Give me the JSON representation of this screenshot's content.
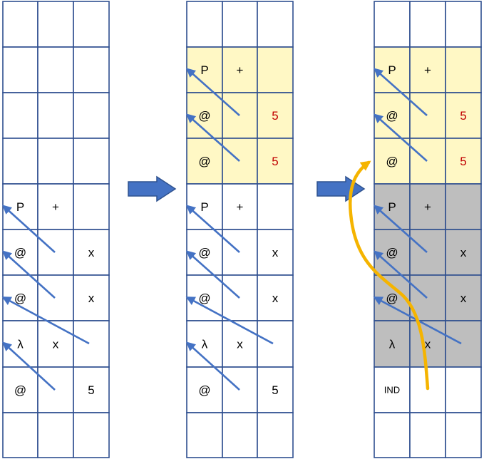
{
  "colors": {
    "grid": "#2F4F8F",
    "arrow": "#4472C4",
    "yellow": "#FFF8C5",
    "gray": "#BEBEBE",
    "red_text": "#C00000",
    "orange": "#F5B400",
    "text": "#000000"
  },
  "panels": [
    {
      "rows": [
        [
          "",
          "",
          ""
        ],
        [
          "",
          "",
          ""
        ],
        [
          "",
          "",
          ""
        ],
        [
          "",
          "",
          ""
        ],
        [
          "P",
          "+",
          ""
        ],
        [
          "@",
          "",
          "x"
        ],
        [
          "@",
          "",
          "x"
        ],
        [
          "λ",
          "x",
          ""
        ],
        [
          "@",
          "",
          "5"
        ],
        [
          "",
          "",
          ""
        ]
      ],
      "fills": [
        "none",
        "none",
        "none",
        "none",
        "none",
        "none",
        "none",
        "none",
        "none",
        "none"
      ]
    },
    {
      "rows": [
        [
          "",
          "",
          ""
        ],
        [
          "P",
          "+",
          ""
        ],
        [
          "@",
          "",
          "5"
        ],
        [
          "@",
          "",
          "5"
        ],
        [
          "P",
          "+",
          ""
        ],
        [
          "@",
          "",
          "x"
        ],
        [
          "@",
          "",
          "x"
        ],
        [
          "λ",
          "x",
          ""
        ],
        [
          "@",
          "",
          "5"
        ],
        [
          "",
          "",
          ""
        ]
      ],
      "fills": [
        "none",
        "yellow",
        "yellow",
        "yellow",
        "none",
        "none",
        "none",
        "none",
        "none",
        "none"
      ]
    },
    {
      "rows": [
        [
          "",
          "",
          ""
        ],
        [
          "P",
          "+",
          ""
        ],
        [
          "@",
          "",
          "5"
        ],
        [
          "@",
          "",
          "5"
        ],
        [
          "P",
          "+",
          ""
        ],
        [
          "@",
          "",
          "x"
        ],
        [
          "@",
          "",
          "x"
        ],
        [
          "λ",
          "x",
          ""
        ],
        [
          "IND",
          "",
          ""
        ],
        [
          "",
          "",
          ""
        ]
      ],
      "fills": [
        "none",
        "yellow",
        "yellow",
        "yellow",
        "gray",
        "gray",
        "gray",
        "gray",
        "none",
        "none"
      ]
    }
  ],
  "red_cells": [
    [
      1,
      2,
      2
    ],
    [
      1,
      3,
      2
    ],
    [
      2,
      2,
      2
    ],
    [
      2,
      3,
      2
    ]
  ],
  "arrows": [
    {
      "panel": 0,
      "from": [
        5,
        0
      ],
      "to": [
        4,
        0
      ]
    },
    {
      "panel": 0,
      "from": [
        6,
        0
      ],
      "to": [
        5,
        0
      ]
    },
    {
      "panel": 0,
      "from": [
        7,
        2
      ],
      "to": [
        6,
        0
      ]
    },
    {
      "panel": 0,
      "from": [
        8,
        0
      ],
      "to": [
        7,
        0
      ]
    },
    {
      "panel": 1,
      "from": [
        2,
        0
      ],
      "to": [
        1,
        0
      ]
    },
    {
      "panel": 1,
      "from": [
        3,
        0
      ],
      "to": [
        2,
        0
      ]
    },
    {
      "panel": 1,
      "from": [
        5,
        0
      ],
      "to": [
        4,
        0
      ]
    },
    {
      "panel": 1,
      "from": [
        6,
        0
      ],
      "to": [
        5,
        0
      ]
    },
    {
      "panel": 1,
      "from": [
        7,
        2
      ],
      "to": [
        6,
        0
      ]
    },
    {
      "panel": 1,
      "from": [
        8,
        0
      ],
      "to": [
        7,
        0
      ]
    },
    {
      "panel": 2,
      "from": [
        2,
        0
      ],
      "to": [
        1,
        0
      ]
    },
    {
      "panel": 2,
      "from": [
        3,
        0
      ],
      "to": [
        2,
        0
      ]
    },
    {
      "panel": 2,
      "from": [
        5,
        0
      ],
      "to": [
        4,
        0
      ]
    },
    {
      "panel": 2,
      "from": [
        6,
        0
      ],
      "to": [
        5,
        0
      ]
    },
    {
      "panel": 2,
      "from": [
        7,
        2
      ],
      "to": [
        6,
        0
      ]
    }
  ]
}
